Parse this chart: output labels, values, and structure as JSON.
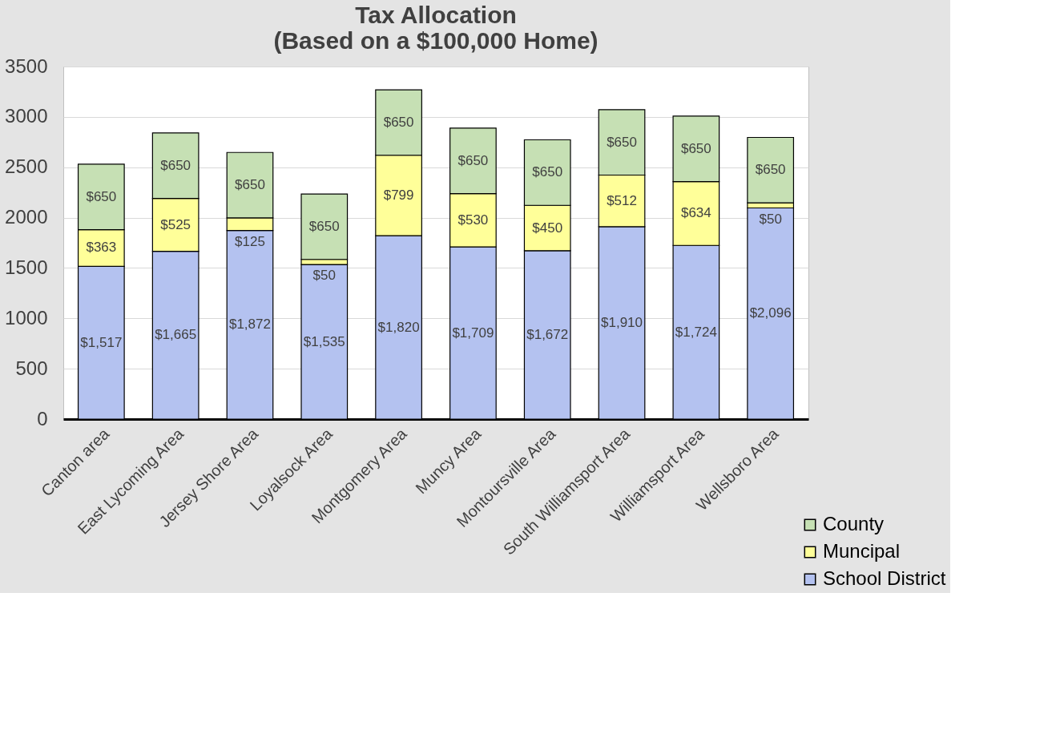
{
  "chart_data": {
    "type": "bar",
    "title": "Tax Allocation\n(Based on a $100,000 Home)",
    "stacked": true,
    "categories": [
      "Canton area",
      "East Lycoming Area",
      "Jersey Shore Area",
      "Loyalsock Area",
      "Montgomery Area",
      "Muncy Area",
      "Montoursville Area",
      "South Williamsport Area",
      "Williamsport Area",
      "Wellsboro Area"
    ],
    "series": [
      {
        "name": "School District",
        "color": "#b4c2f0",
        "values": [
          1517,
          1665,
          1872,
          1535,
          1820,
          1709,
          1672,
          1910,
          1724,
          2096
        ],
        "value_labels": [
          "$1,517",
          "$1,665",
          "$1,872",
          "$1,535",
          "$1,820",
          "$1,709",
          "$1,672",
          "$1,910",
          "$1,724",
          "$2,096"
        ]
      },
      {
        "name": "Muncipal",
        "color": "#ffff99",
        "values": [
          363,
          525,
          125,
          50,
          799,
          530,
          450,
          512,
          634,
          50
        ],
        "value_labels": [
          "$363",
          "$525",
          "$125",
          "$50",
          "$799",
          "$530",
          "$450",
          "$512",
          "$634",
          "$50"
        ]
      },
      {
        "name": "County",
        "color": "#c6e0b4",
        "values": [
          650,
          650,
          650,
          650,
          650,
          650,
          650,
          650,
          650,
          650
        ],
        "value_labels": [
          "$650",
          "$650",
          "$650",
          "$650",
          "$650",
          "$650",
          "$650",
          "$650",
          "$650",
          "$650"
        ]
      }
    ],
    "ylim": [
      0,
      3500
    ],
    "yticks": [
      0,
      500,
      1000,
      1500,
      2000,
      2500,
      3000,
      3500
    ],
    "grid": "y",
    "legend": "bottom right"
  }
}
